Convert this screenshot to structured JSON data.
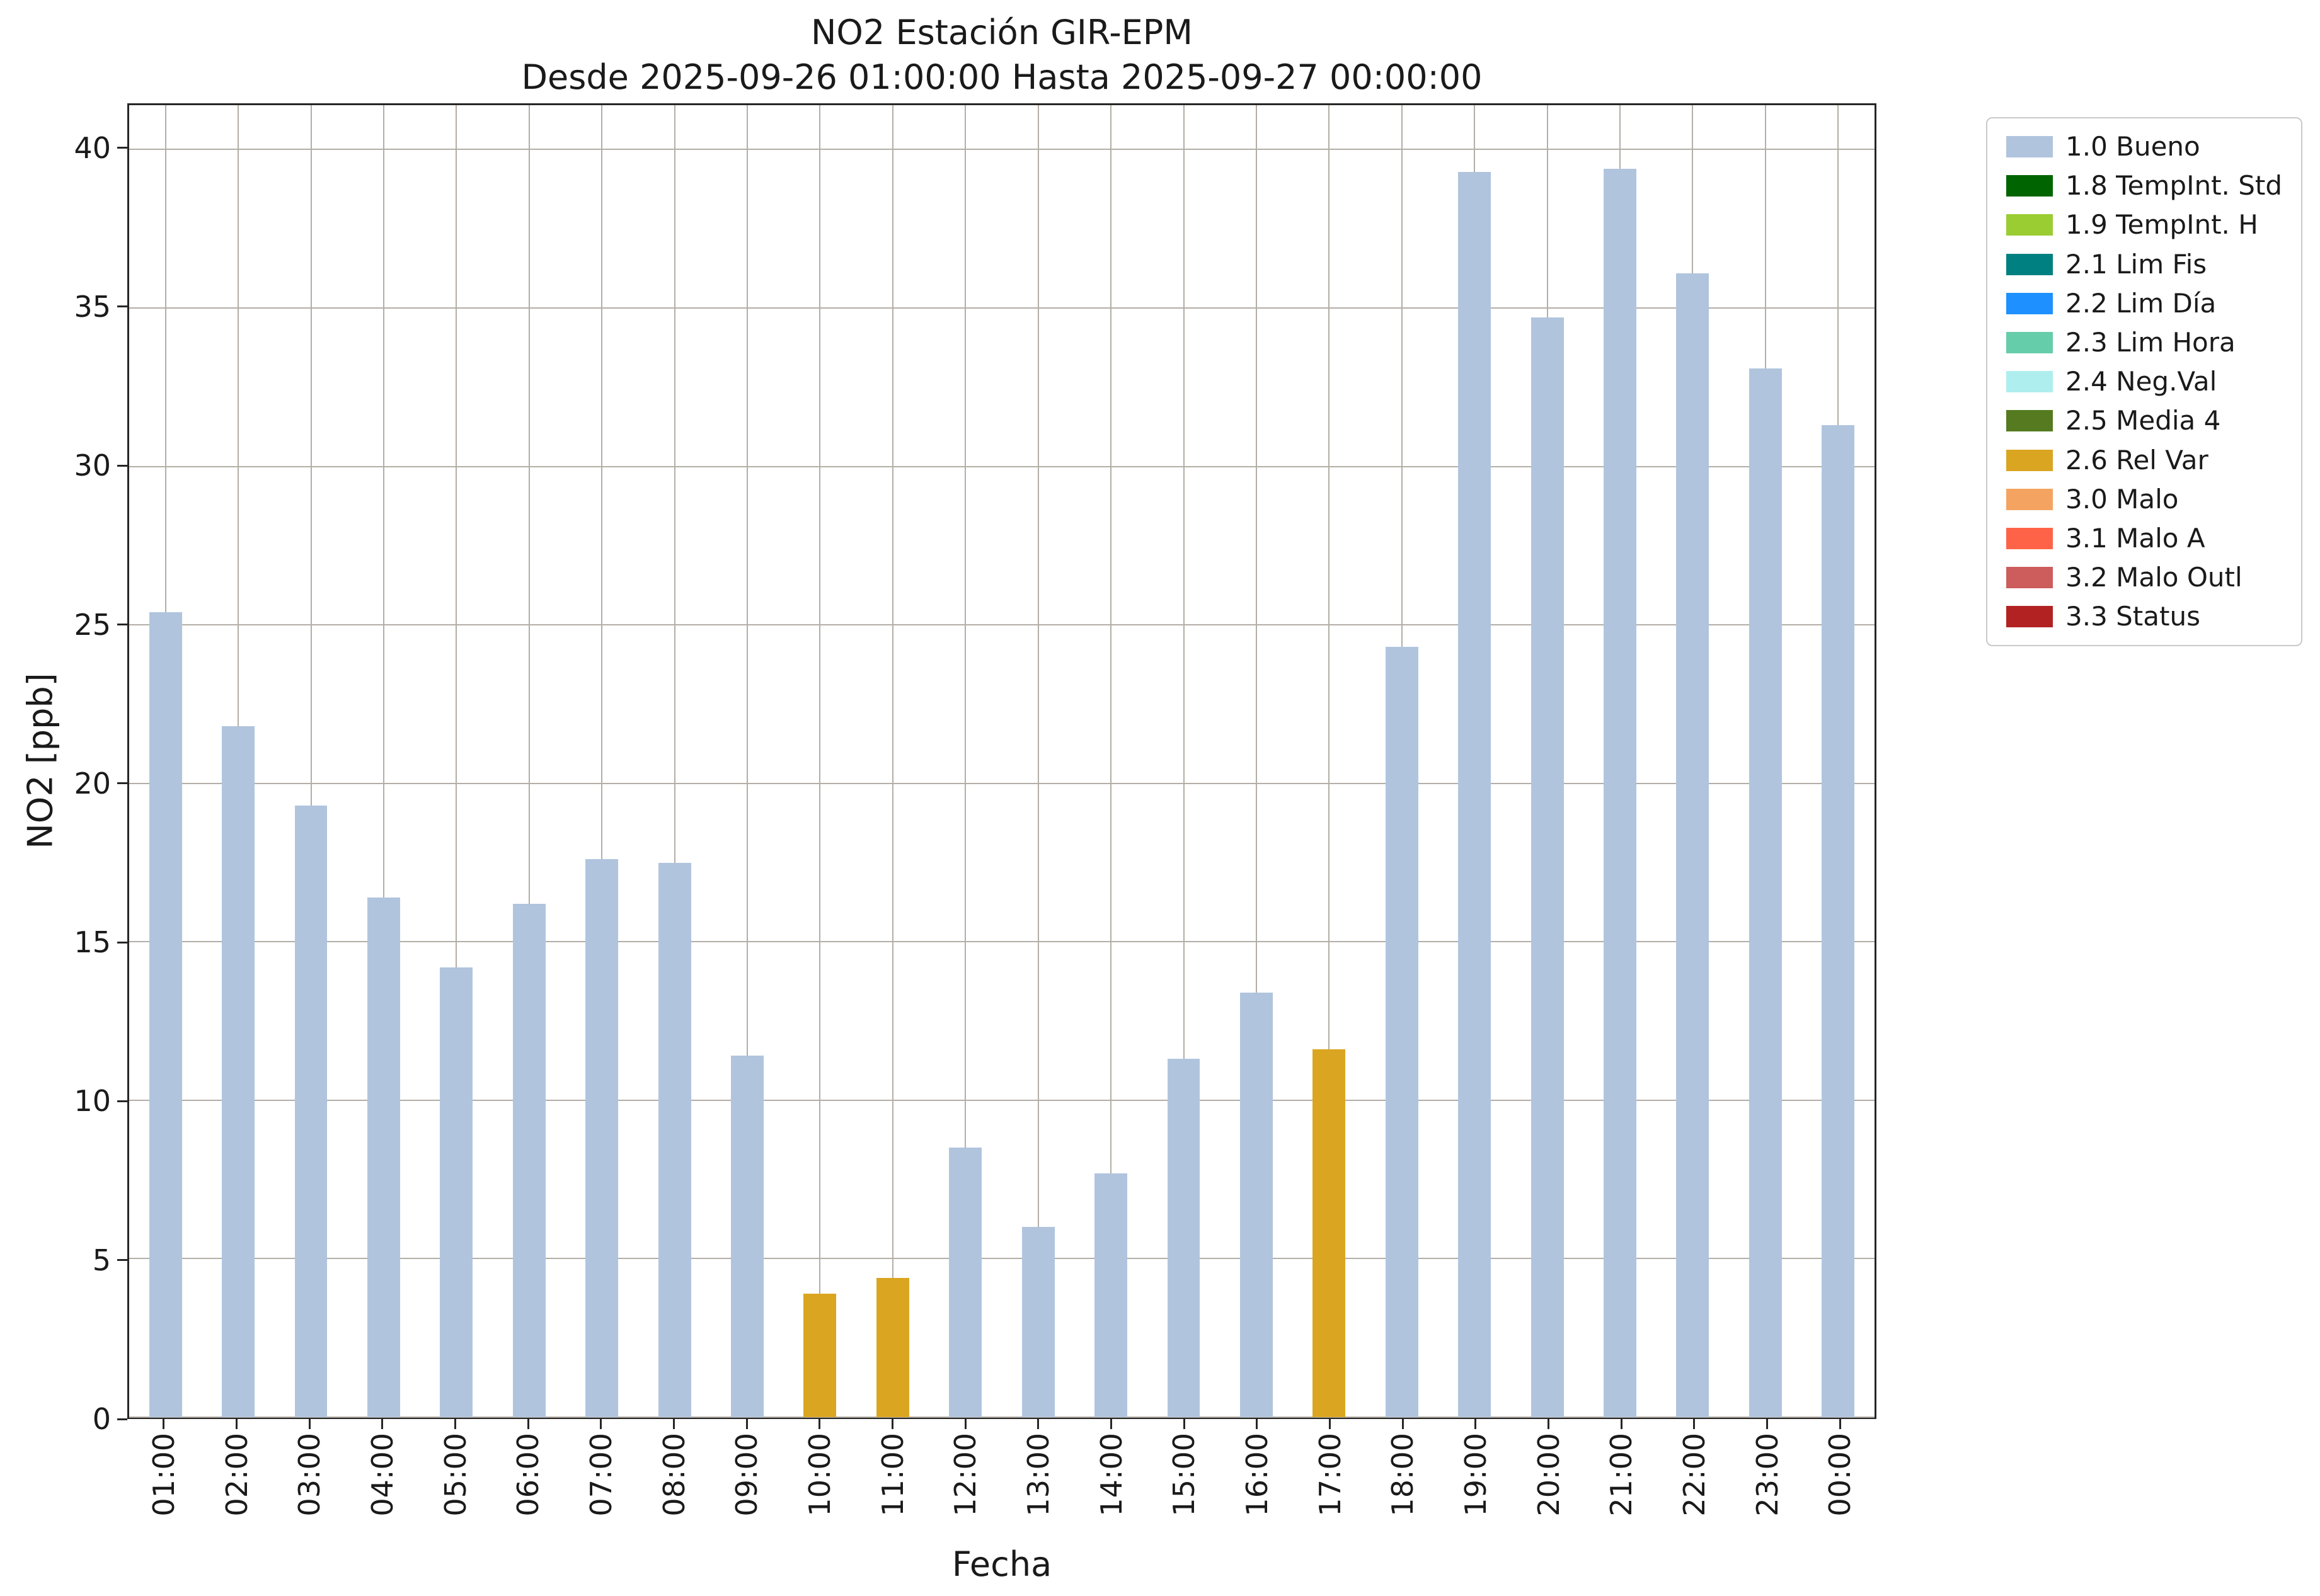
{
  "chart_data": {
    "type": "bar",
    "title_lines": [
      "NO2 Estación GIR-EPM",
      "Desde 2025-09-26 01:00:00 Hasta 2025-09-27 00:00:00"
    ],
    "title": "NO2 Estación GIR-EPM / Desde 2025-09-26 01:00:00 Hasta 2025-09-27 00:00:00",
    "xlabel": "Fecha",
    "ylabel": "NO2 [ppb]",
    "ylim": [
      0,
      41.4
    ],
    "yticks": [
      0,
      5,
      10,
      15,
      20,
      25,
      30,
      35,
      40
    ],
    "grid": true,
    "legend_position": "outside upper right",
    "bar_width_fraction": 0.45,
    "categories": [
      "01:00",
      "02:00",
      "03:00",
      "04:00",
      "05:00",
      "06:00",
      "07:00",
      "08:00",
      "09:00",
      "10:00",
      "11:00",
      "12:00",
      "13:00",
      "14:00",
      "15:00",
      "16:00",
      "17:00",
      "18:00",
      "19:00",
      "20:00",
      "21:00",
      "22:00",
      "23:00",
      "00:00"
    ],
    "values": [
      25.4,
      21.8,
      19.3,
      16.4,
      14.2,
      16.2,
      17.6,
      17.5,
      11.4,
      3.9,
      4.4,
      8.5,
      6.0,
      7.7,
      11.3,
      13.4,
      11.6,
      24.3,
      39.3,
      34.7,
      39.4,
      36.1,
      33.1,
      31.3
    ],
    "statuses": [
      "1.0 Bueno",
      "1.0 Bueno",
      "1.0 Bueno",
      "1.0 Bueno",
      "1.0 Bueno",
      "1.0 Bueno",
      "1.0 Bueno",
      "1.0 Bueno",
      "1.0 Bueno",
      "2.6 Rel Var",
      "2.6 Rel Var",
      "1.0 Bueno",
      "1.0 Bueno",
      "1.0 Bueno",
      "1.0 Bueno",
      "1.0 Bueno",
      "2.6 Rel Var",
      "1.0 Bueno",
      "1.0 Bueno",
      "1.0 Bueno",
      "1.0 Bueno",
      "1.0 Bueno",
      "1.0 Bueno",
      "1.0 Bueno"
    ],
    "legend": [
      {
        "label": "1.0 Bueno",
        "color": "#b0c4de"
      },
      {
        "label": "1.8 TempInt. Std",
        "color": "#006400"
      },
      {
        "label": "1.9 TempInt. H",
        "color": "#9acd32"
      },
      {
        "label": "2.1 Lim Fis",
        "color": "#008080"
      },
      {
        "label": "2.2 Lim Día",
        "color": "#1e90ff"
      },
      {
        "label": "2.3 Lim Hora",
        "color": "#66cdaa"
      },
      {
        "label": "2.4 Neg.Val",
        "color": "#afeeee"
      },
      {
        "label": "2.5 Media 4",
        "color": "#557a1f"
      },
      {
        "label": "2.6 Rel Var",
        "color": "#daa520"
      },
      {
        "label": "3.0 Malo",
        "color": "#f4a460"
      },
      {
        "label": "3.1 Malo A",
        "color": "#ff6347"
      },
      {
        "label": "3.2 Malo Outl",
        "color": "#cd5c5c"
      },
      {
        "label": "3.3 Status",
        "color": "#b22222"
      }
    ],
    "colors": {
      "grid": "#b3aea6",
      "spine": "#262626",
      "background": "#ffffff"
    }
  }
}
